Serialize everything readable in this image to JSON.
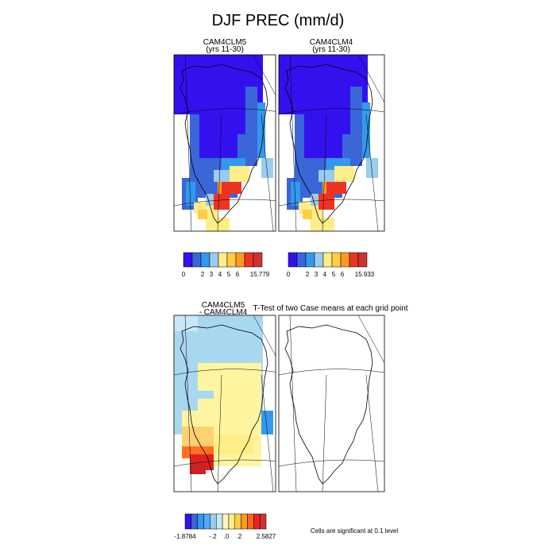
{
  "title": "DJF PREC (mm/d)",
  "panels": [
    {
      "title": "CAM4CLM5",
      "subtitle": "(yrs 11-30)"
    },
    {
      "title": "CAM4CLM4",
      "subtitle": "(yrs 11-30)"
    }
  ],
  "colorbars": [
    {
      "colors": [
        "#3311ee",
        "#3a66d8",
        "#3399ee",
        "#99ccee",
        "#ffee88",
        "#ffcc44",
        "#ff9922",
        "#ee3322",
        "#cc3333"
      ],
      "labels": [
        "0",
        "2",
        "3",
        "4",
        "5",
        "6",
        "15.779"
      ]
    },
    {
      "colors": [
        "#3311ee",
        "#3a66d8",
        "#3399ee",
        "#99ccee",
        "#ffee88",
        "#ffcc44",
        "#ff9922",
        "#ee3322",
        "#cc3333"
      ],
      "labels": [
        "0",
        "2",
        "3",
        "4",
        "5",
        "6",
        "15.933"
      ]
    },
    {
      "colors": [
        "#3311ee",
        "#3a66d8",
        "#3399ee",
        "#55aaff",
        "#99ccee",
        "#c8e8f8",
        "#fff5c0",
        "#ffee88",
        "#ffcc44",
        "#ff9922",
        "#ff6622",
        "#ee2222",
        "#cc3333"
      ],
      "labels": [
        "-1.8784",
        "-.2",
        ".0",
        ".2",
        "2.5827"
      ]
    }
  ],
  "difference": {
    "title": "CAM4CLM5",
    "subtitle": "- CAM4CLM4"
  },
  "ttest": {
    "title": "T-Test of two Case means at each grid point",
    "note": "Cells are significant at 0.1 level"
  }
}
